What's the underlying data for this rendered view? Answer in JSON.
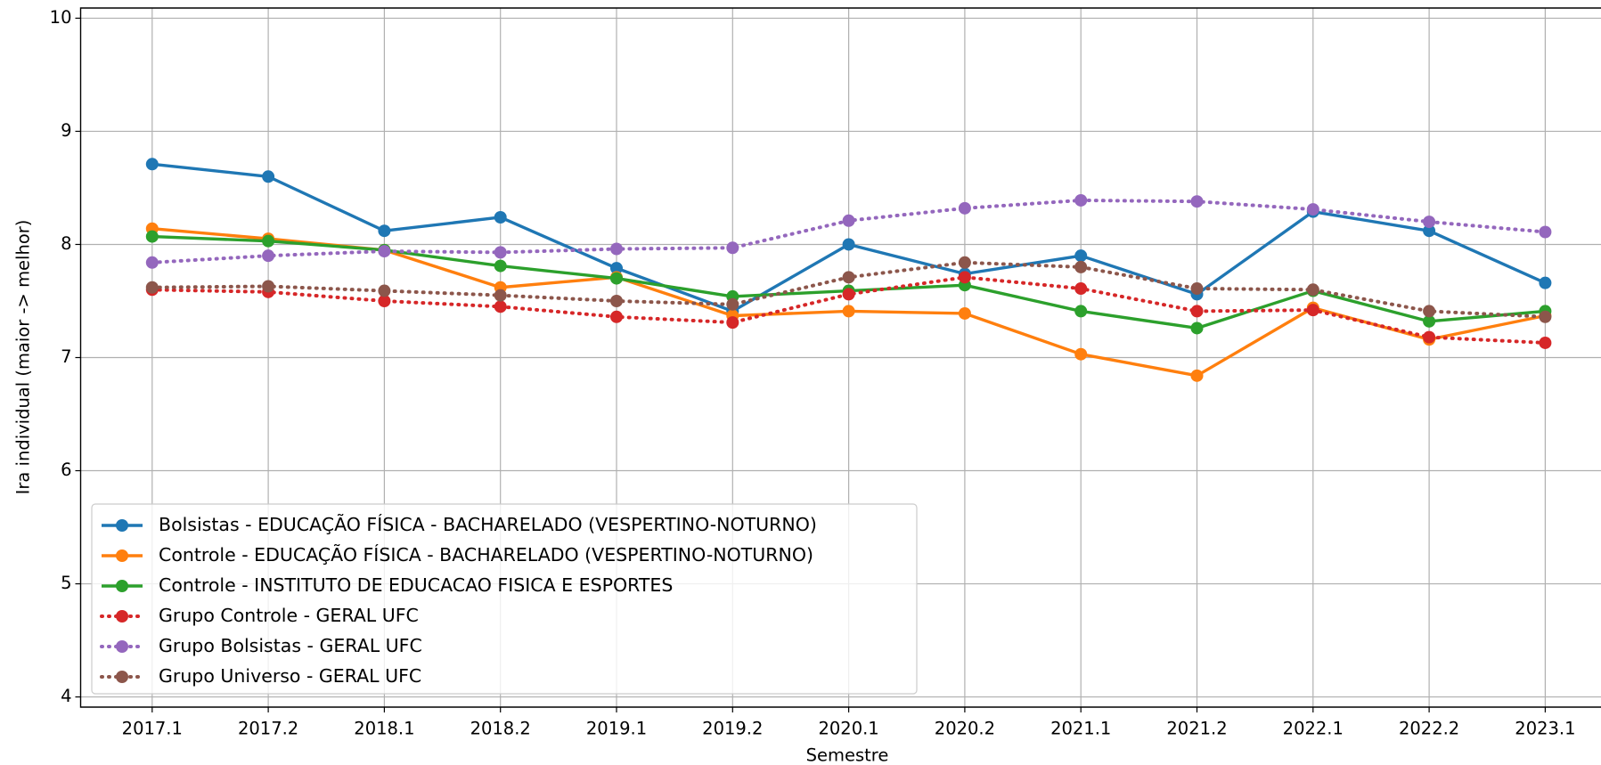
{
  "chart_data": {
    "type": "line",
    "x_label": "Semestre",
    "y_label": "Ira individual (maior -> melhor)",
    "categories": [
      "2017.1",
      "2017.2",
      "2018.1",
      "2018.2",
      "2019.1",
      "2019.2",
      "2020.1",
      "2020.2",
      "2021.1",
      "2021.2",
      "2022.1",
      "2022.2",
      "2023.1"
    ],
    "ylim": [
      3.91,
      10.09
    ],
    "yticks": [
      4,
      5,
      6,
      7,
      8,
      9,
      10
    ],
    "grid": true,
    "legend": "lower left",
    "series": [
      {
        "name": "Bolsistas - EDUCAÇÃO FÍSICA - BACHARELADO (VESPERTINO-NOTURNO)",
        "color": "#1f77b4",
        "linestyle": "solid",
        "values": [
          8.71,
          8.6,
          8.12,
          8.24,
          7.79,
          7.41,
          8.0,
          7.74,
          7.9,
          7.56,
          8.29,
          8.12,
          7.66
        ]
      },
      {
        "name": "Controle - EDUCAÇÃO FÍSICA - BACHARELADO (VESPERTINO-NOTURNO)",
        "color": "#ff7f0e",
        "linestyle": "solid",
        "values": [
          8.14,
          8.05,
          7.95,
          7.62,
          7.71,
          7.37,
          7.41,
          7.39,
          7.03,
          6.84,
          7.44,
          7.16,
          7.37
        ]
      },
      {
        "name": "Controle - INSTITUTO DE EDUCACAO FISICA E ESPORTES",
        "color": "#2ca02c",
        "linestyle": "solid",
        "values": [
          8.07,
          8.03,
          7.95,
          7.81,
          7.7,
          7.54,
          7.59,
          7.64,
          7.41,
          7.26,
          7.59,
          7.32,
          7.41
        ]
      },
      {
        "name": "Grupo Controle - GERAL UFC",
        "color": "#d62728",
        "linestyle": "dotted",
        "values": [
          7.6,
          7.58,
          7.5,
          7.45,
          7.36,
          7.31,
          7.56,
          7.71,
          7.61,
          7.41,
          7.42,
          7.18,
          7.13
        ]
      },
      {
        "name": "Grupo Bolsistas - GERAL UFC",
        "color": "#9467bd",
        "linestyle": "dotted",
        "values": [
          7.84,
          7.9,
          7.94,
          7.93,
          7.96,
          7.97,
          8.21,
          8.32,
          8.39,
          8.38,
          8.31,
          8.2,
          8.11
        ]
      },
      {
        "name": "Grupo Universo - GERAL UFC",
        "color": "#8c564b",
        "linestyle": "dotted",
        "values": [
          7.62,
          7.63,
          7.59,
          7.55,
          7.5,
          7.47,
          7.71,
          7.84,
          7.8,
          7.61,
          7.6,
          7.41,
          7.36
        ]
      }
    ]
  }
}
